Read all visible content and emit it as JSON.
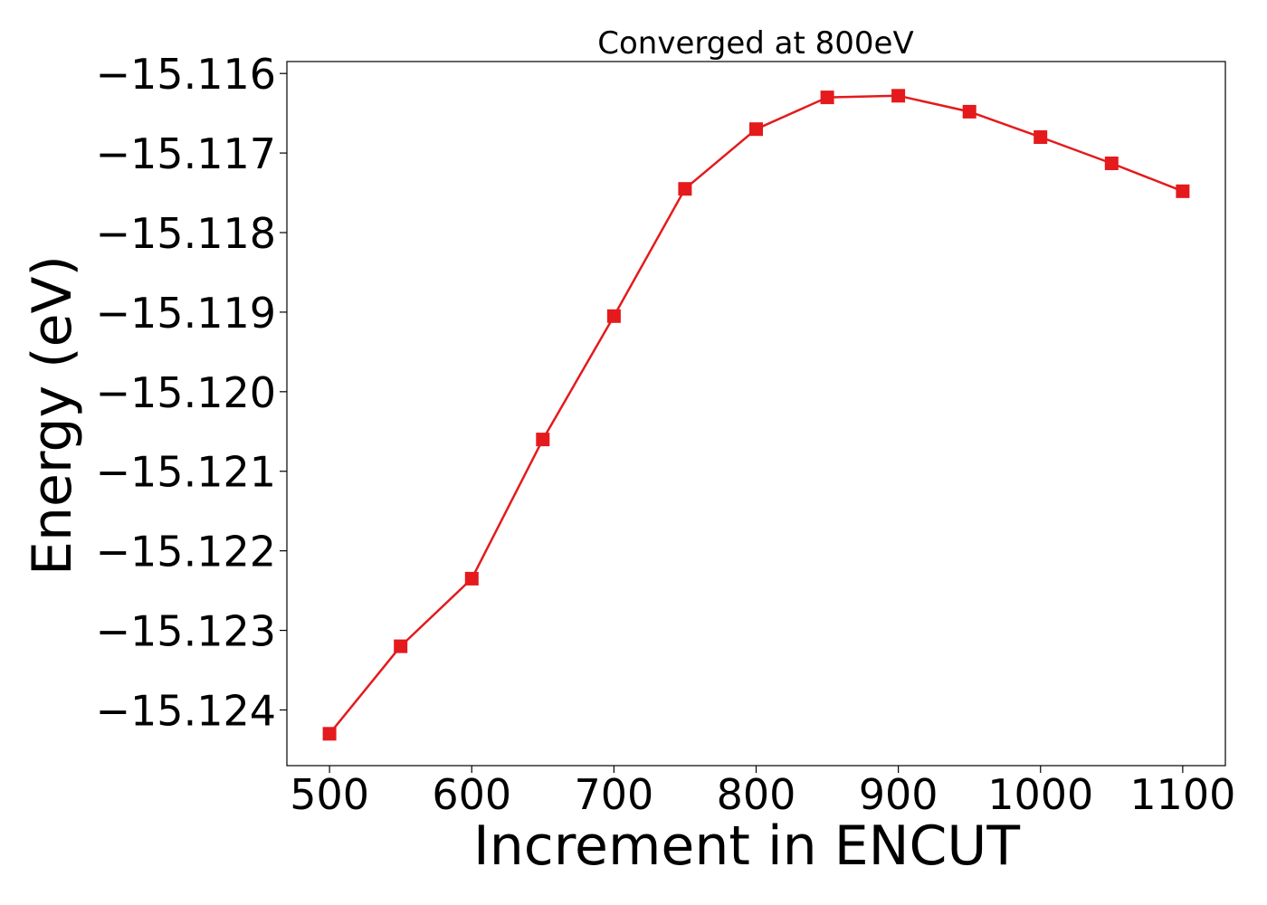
{
  "chart_data": {
    "type": "line",
    "title": "Converged at 800eV",
    "xlabel": "Increment in ENCUT",
    "ylabel": "Energy (eV)",
    "xlim": [
      470,
      1130
    ],
    "ylim": [
      -15.1247,
      -15.11585
    ],
    "xticks": [
      500,
      600,
      700,
      800,
      900,
      1000,
      1100
    ],
    "xtick_labels": [
      "500",
      "600",
      "700",
      "800",
      "900",
      "1000",
      "1100"
    ],
    "yticks": [
      -15.124,
      -15.123,
      -15.122,
      -15.121,
      -15.12,
      -15.119,
      -15.118,
      -15.117,
      -15.116
    ],
    "ytick_labels": [
      "−15.124",
      "−15.123",
      "−15.122",
      "−15.121",
      "−15.120",
      "−15.119",
      "−15.118",
      "−15.117",
      "−15.116"
    ],
    "grid": false,
    "series": [
      {
        "color": "#e41a1c",
        "marker": "square",
        "x": [
          500,
          550,
          600,
          650,
          700,
          750,
          800,
          850,
          900,
          950,
          1000,
          1050,
          1100
        ],
        "y": [
          -15.1243,
          -15.1232,
          -15.12235,
          -15.1206,
          -15.11905,
          -15.11745,
          -15.1167,
          -15.1163,
          -15.11628,
          -15.11648,
          -15.1168,
          -15.11713,
          -15.11748
        ]
      }
    ]
  }
}
